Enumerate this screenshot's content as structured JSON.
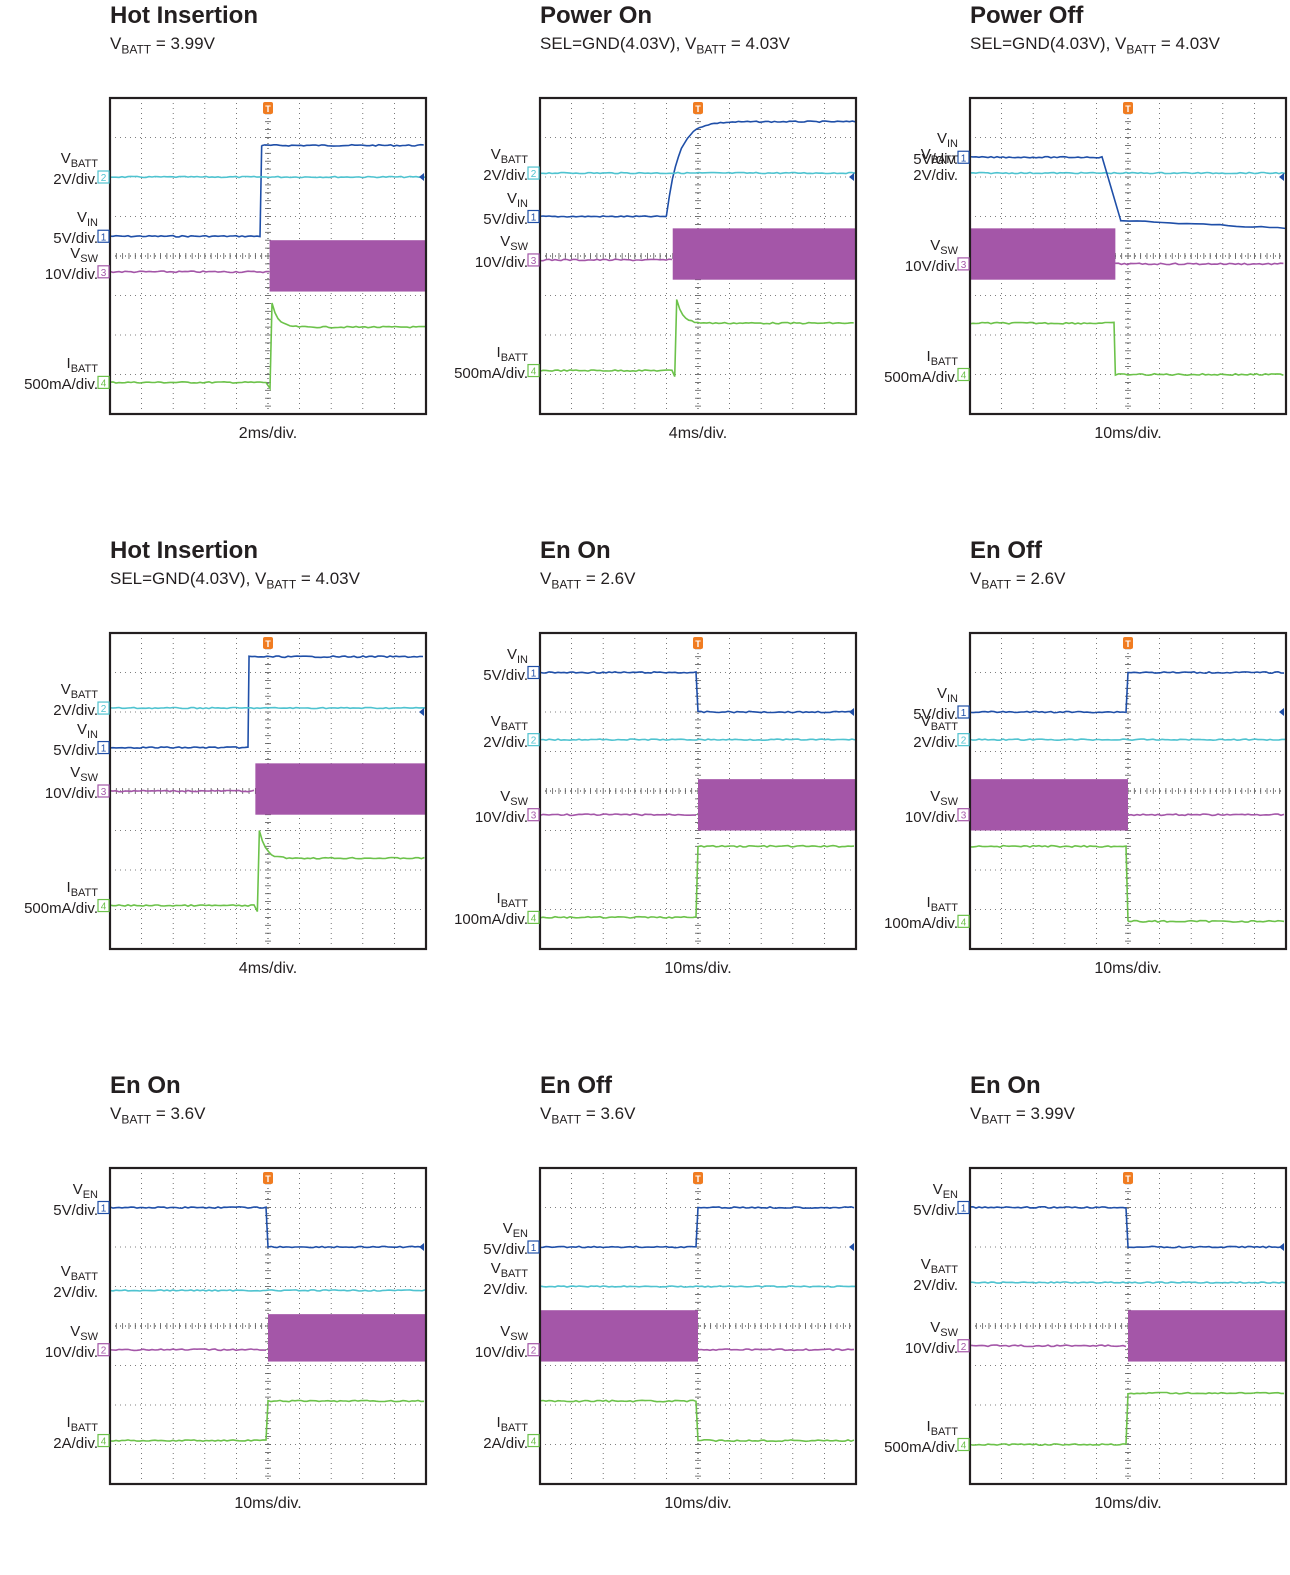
{
  "colors": {
    "vin": "#1f4fa8",
    "vbatt": "#4fc3d0",
    "vsw": "#a456a8",
    "ibatt": "#6cc24a",
    "trigger": "#f07c21",
    "grid": "#555555",
    "frame": "#231f20"
  },
  "panels": [
    {
      "title": "Hot Insertion",
      "subtitle": {
        "pre": "V",
        "sub": "BATT",
        "post": " = 3.99V"
      },
      "timebase": "2ms/div.",
      "trigger_div": 5,
      "channels": [
        {
          "key": "vin",
          "name": "V",
          "sub": "IN",
          "scale": "5V/div.",
          "marker": "1",
          "level": 3.5,
          "events": [
            {
              "at": 4.8,
              "to": 1.2,
              "shape": "step"
            }
          ]
        },
        {
          "key": "vbatt",
          "name": "V",
          "sub": "BATT",
          "scale": "2V/div.",
          "marker": "2",
          "level": 2.0,
          "events": []
        },
        {
          "key": "vsw",
          "name": "V",
          "sub": "SW",
          "scale": "10V/div.",
          "marker": "3",
          "level": 4.4,
          "events": [
            {
              "at": 5.05,
              "to": "band",
              "top": 3.6,
              "bottom": 4.9
            }
          ]
        },
        {
          "key": "ibatt",
          "name": "I",
          "sub": "BATT",
          "scale": "500mA/div.",
          "marker": "4",
          "level": 7.2,
          "events": [
            {
              "at": 5.0,
              "to": 5.8,
              "shape": "spike",
              "peak": 5.2
            }
          ]
        }
      ]
    },
    {
      "title": "Power On",
      "subtitle": {
        "pre": "SEL=GND(4.03V), V",
        "sub": "BATT",
        "post": " = 4.03V"
      },
      "timebase": "4ms/div.",
      "trigger_div": 5,
      "channels": [
        {
          "key": "vin",
          "name": "V",
          "sub": "IN",
          "scale": "5V/div.",
          "marker": "1",
          "level": 3.0,
          "events": [
            {
              "at": 4.0,
              "to": 0.6,
              "shape": "rc"
            }
          ]
        },
        {
          "key": "vbatt",
          "name": "V",
          "sub": "BATT",
          "scale": "2V/div.",
          "marker": "2",
          "level": 1.9,
          "events": []
        },
        {
          "key": "vsw",
          "name": "V",
          "sub": "SW",
          "scale": "10V/div.",
          "marker": "3",
          "level": 4.1,
          "events": [
            {
              "at": 4.2,
              "to": "band",
              "top": 3.3,
              "bottom": 4.6
            }
          ]
        },
        {
          "key": "ibatt",
          "name": "I",
          "sub": "BATT",
          "scale": "500mA/div.",
          "marker": "4",
          "level": 6.9,
          "events": [
            {
              "at": 4.2,
              "to": 5.7,
              "shape": "spike",
              "peak": 5.1
            }
          ]
        }
      ]
    },
    {
      "title": "Power Off",
      "subtitle": {
        "pre": "SEL=GND(4.03V), V",
        "sub": "BATT",
        "post": " = 4.03V"
      },
      "timebase": "10ms/div.",
      "trigger_div": 5,
      "channels": [
        {
          "key": "vbatt",
          "name": "V",
          "sub": "BATT",
          "scale": "2V/div.",
          "marker": "",
          "level": 1.9,
          "events": []
        },
        {
          "key": "vin",
          "name": "V",
          "sub": "IN",
          "scale": "5V/div.",
          "marker": "1",
          "level": 1.5,
          "events": [
            {
              "at": 4.2,
              "to": 3.1,
              "shape": "fall",
              "end": 3.3
            }
          ]
        },
        {
          "key": "vsw",
          "name": "V",
          "sub": "SW",
          "scale": "10V/div.",
          "marker": "3",
          "level": 4.2,
          "events": [
            {
              "at": -1,
              "to": "band_until",
              "until": 4.6,
              "top": 3.3,
              "bottom": 4.6
            }
          ]
        },
        {
          "key": "ibatt",
          "name": "I",
          "sub": "BATT",
          "scale": "500mA/div.",
          "marker": "4",
          "level": 7.0,
          "events": [
            {
              "at": -1,
              "to": "pre_level",
              "pre": 5.7,
              "until": 4.6
            }
          ]
        }
      ]
    },
    {
      "title": "Hot Insertion",
      "subtitle": {
        "pre": "SEL=GND(4.03V), V",
        "sub": "BATT",
        "post": " = 4.03V"
      },
      "timebase": "4ms/div.",
      "trigger_div": 5,
      "channels": [
        {
          "key": "vin",
          "name": "V",
          "sub": "IN",
          "scale": "5V/div.",
          "marker": "1",
          "level": 2.9,
          "events": [
            {
              "at": 4.4,
              "to": 0.6,
              "shape": "step"
            }
          ]
        },
        {
          "key": "vbatt",
          "name": "V",
          "sub": "BATT",
          "scale": "2V/div.",
          "marker": "2",
          "level": 1.9,
          "events": []
        },
        {
          "key": "vsw",
          "name": "V",
          "sub": "SW",
          "scale": "10V/div.",
          "marker": "3",
          "level": 4.0,
          "events": [
            {
              "at": 4.6,
              "to": "band",
              "top": 3.3,
              "bottom": 4.6
            }
          ]
        },
        {
          "key": "ibatt",
          "name": "I",
          "sub": "BATT",
          "scale": "500mA/div.",
          "marker": "4",
          "level": 6.9,
          "events": [
            {
              "at": 4.6,
              "to": 5.7,
              "shape": "spike",
              "peak": 5.0
            }
          ]
        }
      ]
    },
    {
      "title": "En On",
      "subtitle": {
        "pre": "V",
        "sub": "BATT",
        "post": " = 2.6V"
      },
      "timebase": "10ms/div.",
      "trigger_div": 5,
      "channels": [
        {
          "key": "vin",
          "name": "V",
          "sub": "IN",
          "scale": "5V/div.",
          "marker": "1",
          "level": 1.0,
          "events": [
            {
              "at": 5.0,
              "to": 2.0,
              "shape": "step"
            }
          ]
        },
        {
          "key": "vbatt",
          "name": "V",
          "sub": "BATT",
          "scale": "2V/div.",
          "marker": "2",
          "level": 2.7,
          "events": []
        },
        {
          "key": "vsw",
          "name": "V",
          "sub": "SW",
          "scale": "10V/div.",
          "marker": "3",
          "level": 4.6,
          "events": [
            {
              "at": 5.0,
              "to": "band",
              "top": 3.7,
              "bottom": 5.0
            }
          ]
        },
        {
          "key": "ibatt",
          "name": "I",
          "sub": "BATT",
          "scale": "100mA/div.",
          "marker": "4",
          "level": 7.2,
          "events": [
            {
              "at": 5.0,
              "to": 5.4,
              "shape": "step"
            }
          ]
        }
      ]
    },
    {
      "title": "En Off",
      "subtitle": {
        "pre": "V",
        "sub": "BATT",
        "post": " = 2.6V"
      },
      "timebase": "10ms/div.",
      "trigger_div": 5,
      "channels": [
        {
          "key": "vin",
          "name": "V",
          "sub": "IN",
          "scale": "5V/div.",
          "marker": "1",
          "level": 2.0,
          "events": [
            {
              "at": 5.0,
              "to": 1.0,
              "shape": "step"
            }
          ]
        },
        {
          "key": "vbatt",
          "name": "V",
          "sub": "BATT",
          "scale": "2V/div.",
          "marker": "2",
          "level": 2.7,
          "events": []
        },
        {
          "key": "vsw",
          "name": "V",
          "sub": "SW",
          "scale": "10V/div.",
          "marker": "3",
          "level": 4.6,
          "events": [
            {
              "at": -1,
              "to": "band_until",
              "until": 5.0,
              "top": 3.7,
              "bottom": 5.0
            }
          ]
        },
        {
          "key": "ibatt",
          "name": "I",
          "sub": "BATT",
          "scale": "100mA/div.",
          "marker": "4",
          "level": 7.3,
          "events": [
            {
              "at": -1,
              "to": "pre_level",
              "pre": 5.4,
              "until": 5.0
            }
          ]
        }
      ]
    },
    {
      "title": "En On",
      "subtitle": {
        "pre": "V",
        "sub": "BATT",
        "post": " = 3.6V"
      },
      "timebase": "10ms/div.",
      "trigger_div": 5,
      "channels": [
        {
          "key": "vin",
          "name": "V",
          "sub": "EN",
          "scale": "5V/div.",
          "marker": "1",
          "level": 1.0,
          "events": [
            {
              "at": 5.0,
              "to": 2.0,
              "shape": "step"
            }
          ]
        },
        {
          "key": "vbatt",
          "name": "V",
          "sub": "BATT",
          "scale": "2V/div.",
          "marker": "",
          "level": 3.1,
          "events": []
        },
        {
          "key": "vsw",
          "name": "V",
          "sub": "SW",
          "scale": "10V/div.",
          "marker": "2",
          "level": 4.6,
          "events": [
            {
              "at": 5.0,
              "to": "band",
              "top": 3.7,
              "bottom": 4.9
            }
          ]
        },
        {
          "key": "ibatt",
          "name": "I",
          "sub": "BATT",
          "scale": "2A/div.",
          "marker": "4",
          "level": 6.9,
          "events": [
            {
              "at": 5.0,
              "to": 5.9,
              "shape": "step"
            }
          ]
        }
      ]
    },
    {
      "title": "En Off",
      "subtitle": {
        "pre": "V",
        "sub": "BATT",
        "post": " = 3.6V"
      },
      "timebase": "10ms/div.",
      "trigger_div": 5,
      "channels": [
        {
          "key": "vin",
          "name": "V",
          "sub": "EN",
          "scale": "5V/div.",
          "marker": "1",
          "level": 2.0,
          "events": [
            {
              "at": 5.0,
              "to": 1.0,
              "shape": "step"
            }
          ]
        },
        {
          "key": "vbatt",
          "name": "V",
          "sub": "BATT",
          "scale": "2V/div.",
          "marker": "",
          "level": 3.0,
          "events": []
        },
        {
          "key": "vsw",
          "name": "V",
          "sub": "SW",
          "scale": "10V/div.",
          "marker": "2",
          "level": 4.6,
          "events": [
            {
              "at": -1,
              "to": "band_until",
              "until": 5.0,
              "top": 3.6,
              "bottom": 4.9
            }
          ]
        },
        {
          "key": "ibatt",
          "name": "I",
          "sub": "BATT",
          "scale": "2A/div.",
          "marker": "4",
          "level": 6.9,
          "events": [
            {
              "at": -1,
              "to": "pre_level",
              "pre": 5.9,
              "until": 5.0
            }
          ]
        }
      ]
    },
    {
      "title": "En On",
      "subtitle": {
        "pre": "V",
        "sub": "BATT",
        "post": " = 3.99V"
      },
      "timebase": "10ms/div.",
      "trigger_div": 5,
      "channels": [
        {
          "key": "vin",
          "name": "V",
          "sub": "EN",
          "scale": "5V/div.",
          "marker": "1",
          "level": 1.0,
          "events": [
            {
              "at": 5.0,
              "to": 2.0,
              "shape": "step"
            }
          ]
        },
        {
          "key": "vbatt",
          "name": "V",
          "sub": "BATT",
          "scale": "2V/div.",
          "marker": "",
          "level": 2.9,
          "events": []
        },
        {
          "key": "vsw",
          "name": "V",
          "sub": "SW",
          "scale": "10V/div.",
          "marker": "2",
          "level": 4.5,
          "events": [
            {
              "at": 5.0,
              "to": "band",
              "top": 3.6,
              "bottom": 4.9
            }
          ]
        },
        {
          "key": "ibatt",
          "name": "I",
          "sub": "BATT",
          "scale": "500mA/div.",
          "marker": "4",
          "level": 7.0,
          "events": [
            {
              "at": 5.0,
              "to": 5.7,
              "shape": "step"
            }
          ]
        }
      ]
    }
  ],
  "chart_data": {
    "type": "line",
    "grid": true,
    "x_divisions": 10,
    "y_divisions": 8
  }
}
